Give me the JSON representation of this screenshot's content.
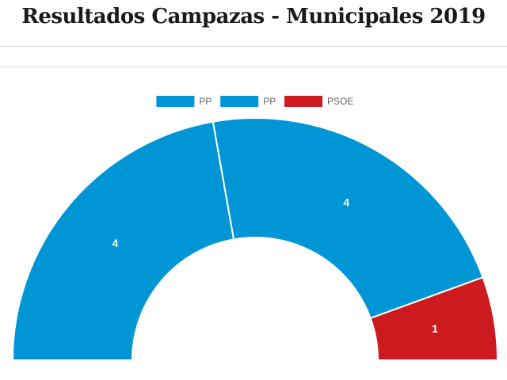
{
  "page": {
    "title": "Resultados Campazas - Municipales 2019"
  },
  "chart_data": {
    "type": "pie",
    "subtype": "half-doughnut",
    "title": "Resultados Campazas - Municipales 2019",
    "legend_position": "top-center",
    "categories": [
      "PP",
      "PP",
      "PSOE"
    ],
    "values": [
      4,
      4,
      1
    ],
    "colors": [
      "#0096d6",
      "#0096d6",
      "#cc1a1f"
    ]
  }
}
